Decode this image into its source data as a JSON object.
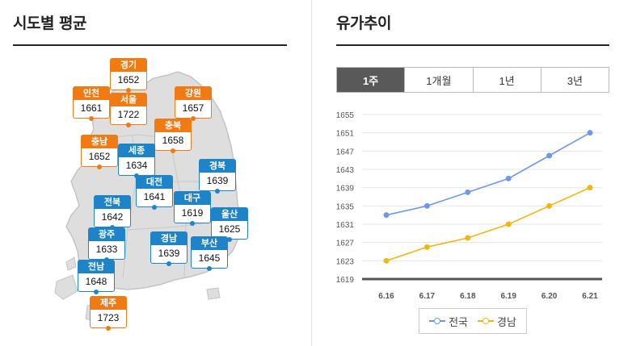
{
  "left_panel": {
    "title": "시도별 평균"
  },
  "right_panel": {
    "title": "유가추이"
  },
  "colors": {
    "capital_region": "#f07a14",
    "other_region": "#1f83c8",
    "series_national": "#6f98e3",
    "series_gyeongnam": "#f0b617"
  },
  "regions": [
    {
      "name": "경기",
      "price": "1652",
      "color": "orange"
    },
    {
      "name": "인천",
      "price": "1661",
      "color": "orange"
    },
    {
      "name": "서울",
      "price": "1722",
      "color": "orange"
    },
    {
      "name": "강원",
      "price": "1657",
      "color": "orange"
    },
    {
      "name": "충북",
      "price": "1658",
      "color": "orange"
    },
    {
      "name": "충남",
      "price": "1652",
      "color": "orange"
    },
    {
      "name": "세종",
      "price": "1634",
      "color": "blue"
    },
    {
      "name": "경북",
      "price": "1639",
      "color": "blue"
    },
    {
      "name": "대전",
      "price": "1641",
      "color": "blue"
    },
    {
      "name": "전북",
      "price": "1642",
      "color": "blue"
    },
    {
      "name": "대구",
      "price": "1619",
      "color": "blue"
    },
    {
      "name": "울산",
      "price": "1625",
      "color": "blue"
    },
    {
      "name": "광주",
      "price": "1633",
      "color": "blue"
    },
    {
      "name": "경남",
      "price": "1639",
      "color": "blue"
    },
    {
      "name": "부산",
      "price": "1645",
      "color": "blue"
    },
    {
      "name": "전남",
      "price": "1648",
      "color": "blue"
    },
    {
      "name": "제주",
      "price": "1723",
      "color": "orange"
    }
  ],
  "tabs": [
    {
      "label": "1주",
      "active": true
    },
    {
      "label": "1개월",
      "active": false
    },
    {
      "label": "1년",
      "active": false
    },
    {
      "label": "3년",
      "active": false
    }
  ],
  "chart_data": {
    "type": "line",
    "x": [
      "6.16",
      "6.17",
      "6.18",
      "6.19",
      "6.20",
      "6.21"
    ],
    "series": [
      {
        "name": "전국",
        "values": [
          1633,
          1635,
          1638,
          1641,
          1646,
          1651
        ],
        "color": "#6f98e3"
      },
      {
        "name": "경남",
        "values": [
          1623,
          1626,
          1628,
          1631,
          1635,
          1639
        ],
        "color": "#f0b617"
      }
    ],
    "yticks": [
      1619,
      1623,
      1627,
      1631,
      1635,
      1639,
      1643,
      1647,
      1651,
      1655
    ],
    "ylim": [
      1619,
      1655
    ],
    "grid": true,
    "legend": "bottom"
  }
}
